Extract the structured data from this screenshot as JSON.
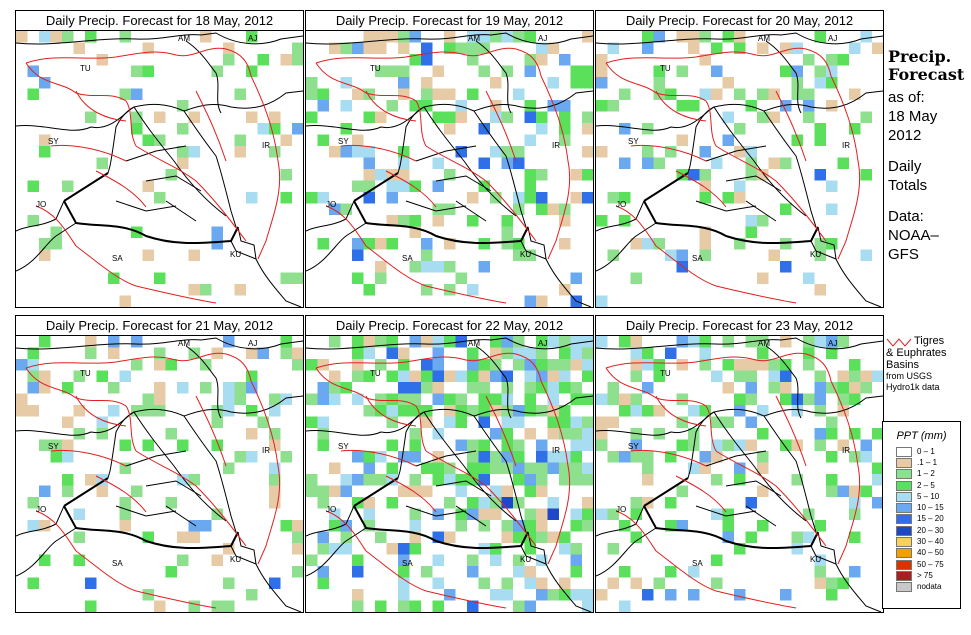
{
  "colors": {
    "basin_line": "#e02020",
    "country_line": "#000000",
    "bins": [
      "#ffffff",
      "#e6cba6",
      "#8ee08e",
      "#5ae05a",
      "#a8dcf0",
      "#6aa8f0",
      "#2f70e8",
      "#1e48c8",
      "#f8d060",
      "#f0a000",
      "#e03000",
      "#a82020",
      "#c8c8c8"
    ]
  },
  "panels": [
    {
      "title": "Daily Precip. Forecast for  18 May, 2012"
    },
    {
      "title": "Daily Precip. Forecast for  19 May, 2012"
    },
    {
      "title": "Daily Precip. Forecast for  20 May, 2012"
    },
    {
      "title": "Daily Precip. Forecast for  21 May, 2012"
    },
    {
      "title": "Daily Precip. Forecast for  22 May, 2012"
    },
    {
      "title": "Daily Precip. Forecast for  23 May, 2012"
    }
  ],
  "country_labels": {
    "am": "AM",
    "aj": "AJ",
    "tu": "TU",
    "sy": "SY",
    "ir": "IR",
    "jo": "JO",
    "sa": "SA",
    "ku": "KU"
  },
  "sidebar": {
    "heading_line1": "Precip.",
    "heading_line2": "Forecast",
    "as_of": "as of:",
    "date_line1": "18 May",
    "date_line2": "2012",
    "totals_line1": "Daily",
    "totals_line2": "Totals",
    "data_line1": "Data:",
    "data_line2": "NOAA–",
    "data_line3": "GFS"
  },
  "basin_note": {
    "line1": "Tigres",
    "line2": "& Euphrates",
    "line3": "Basins",
    "line4": "from USGS",
    "line5": "Hydro1k data"
  },
  "legend": {
    "title": "PPT (mm)",
    "bins": [
      {
        "label": "0 – 1"
      },
      {
        "label": ".1 – 1"
      },
      {
        "label": "1 – 2"
      },
      {
        "label": "2 – 5"
      },
      {
        "label": "5 – 10"
      },
      {
        "label": "10 – 15"
      },
      {
        "label": "15 – 20"
      },
      {
        "label": "20 – 30"
      },
      {
        "label": "30 – 40"
      },
      {
        "label": "40 – 50"
      },
      {
        "label": "50 – 75"
      },
      {
        "label": "> 75"
      },
      {
        "label": "nodata"
      }
    ]
  }
}
